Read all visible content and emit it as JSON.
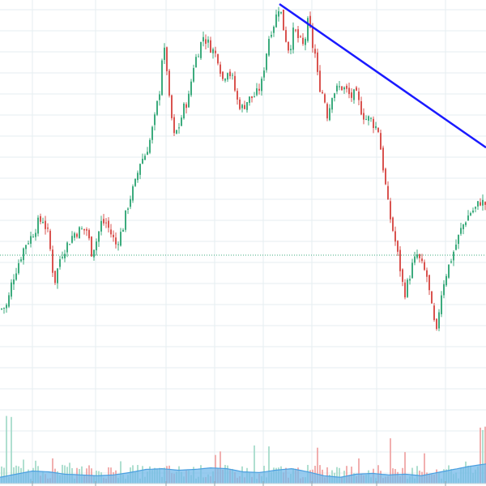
{
  "chart_data": {
    "type": "candlestick",
    "grid": true,
    "legend": "none",
    "price_range": [
      35,
      140
    ],
    "volume_range": [
      0,
      100
    ],
    "colors": {
      "up": "#3cab7d",
      "down": "#d9534f",
      "volume_up": "#a6dccb",
      "volume_down": "#f0a6a6",
      "volume_ma_fill": "#74b9ea",
      "volume_ma_line": "#4a9fe0",
      "trendline": "#1a1aff",
      "reference_line": "#3cab7d",
      "grid": "#e6eef0"
    },
    "price_path": [
      [
        0,
        55
      ],
      [
        8,
        56
      ],
      [
        14,
        63
      ],
      [
        22,
        68
      ],
      [
        30,
        73
      ],
      [
        37,
        75
      ],
      [
        46,
        79
      ],
      [
        52,
        80
      ],
      [
        58,
        76
      ],
      [
        62,
        70
      ],
      [
        66,
        62
      ],
      [
        74,
        70
      ],
      [
        82,
        73
      ],
      [
        90,
        76
      ],
      [
        98,
        77
      ],
      [
        106,
        77
      ],
      [
        112,
        71
      ],
      [
        118,
        74
      ],
      [
        124,
        79
      ],
      [
        130,
        79
      ],
      [
        136,
        76
      ],
      [
        142,
        73
      ],
      [
        150,
        77
      ],
      [
        158,
        85
      ],
      [
        166,
        90
      ],
      [
        172,
        96
      ],
      [
        178,
        98
      ],
      [
        184,
        102
      ],
      [
        190,
        108
      ],
      [
        196,
        116
      ],
      [
        200,
        128
      ],
      [
        204,
        125
      ],
      [
        208,
        113
      ],
      [
        214,
        103
      ],
      [
        220,
        106
      ],
      [
        226,
        111
      ],
      [
        232,
        114
      ],
      [
        238,
        123
      ],
      [
        244,
        127
      ],
      [
        250,
        131
      ],
      [
        256,
        129
      ],
      [
        262,
        127
      ],
      [
        268,
        125
      ],
      [
        274,
        119
      ],
      [
        280,
        122
      ],
      [
        286,
        119
      ],
      [
        292,
        113
      ],
      [
        298,
        111
      ],
      [
        304,
        113
      ],
      [
        310,
        114
      ],
      [
        316,
        115
      ],
      [
        322,
        118
      ],
      [
        326,
        124
      ],
      [
        332,
        132
      ],
      [
        338,
        135
      ],
      [
        344,
        140
      ],
      [
        350,
        132
      ],
      [
        356,
        127
      ],
      [
        362,
        133
      ],
      [
        368,
        130
      ],
      [
        374,
        128
      ],
      [
        380,
        136
      ],
      [
        384,
        129
      ],
      [
        388,
        126
      ],
      [
        392,
        118
      ],
      [
        396,
        116
      ],
      [
        400,
        113
      ],
      [
        404,
        108
      ],
      [
        408,
        115
      ],
      [
        414,
        116
      ],
      [
        420,
        117
      ],
      [
        426,
        116
      ],
      [
        432,
        114
      ],
      [
        438,
        115
      ],
      [
        444,
        111
      ],
      [
        450,
        108
      ],
      [
        456,
        108
      ],
      [
        462,
        106
      ],
      [
        466,
        105
      ],
      [
        470,
        98
      ],
      [
        474,
        91
      ],
      [
        478,
        84
      ],
      [
        482,
        79
      ],
      [
        486,
        75
      ],
      [
        490,
        70
      ],
      [
        494,
        65
      ],
      [
        498,
        59
      ],
      [
        502,
        62
      ],
      [
        508,
        67
      ],
      [
        514,
        70
      ],
      [
        520,
        67
      ],
      [
        526,
        64
      ],
      [
        530,
        58
      ],
      [
        534,
        52
      ],
      [
        538,
        48
      ],
      [
        542,
        57
      ],
      [
        546,
        62
      ],
      [
        550,
        65
      ],
      [
        556,
        69
      ],
      [
        562,
        73
      ],
      [
        568,
        77
      ],
      [
        574,
        80
      ],
      [
        580,
        82
      ],
      [
        586,
        83
      ],
      [
        592,
        85
      ],
      [
        600,
        84
      ]
    ],
    "volume_ma": [
      [
        0,
        8
      ],
      [
        20,
        12
      ],
      [
        40,
        16
      ],
      [
        60,
        15
      ],
      [
        80,
        12
      ],
      [
        100,
        11
      ],
      [
        120,
        10
      ],
      [
        140,
        11
      ],
      [
        160,
        14
      ],
      [
        180,
        18
      ],
      [
        200,
        19
      ],
      [
        220,
        17
      ],
      [
        240,
        18
      ],
      [
        260,
        20
      ],
      [
        280,
        19
      ],
      [
        300,
        15
      ],
      [
        320,
        14
      ],
      [
        340,
        17
      ],
      [
        360,
        19
      ],
      [
        380,
        15
      ],
      [
        400,
        10
      ],
      [
        420,
        8
      ],
      [
        440,
        12
      ],
      [
        460,
        13
      ],
      [
        480,
        11
      ],
      [
        500,
        12
      ],
      [
        520,
        10
      ],
      [
        540,
        14
      ],
      [
        560,
        18
      ],
      [
        580,
        22
      ],
      [
        600,
        25
      ]
    ],
    "trendline": [
      [
        345,
        140
      ],
      [
        600,
        100
      ]
    ],
    "reference_level": 70
  }
}
